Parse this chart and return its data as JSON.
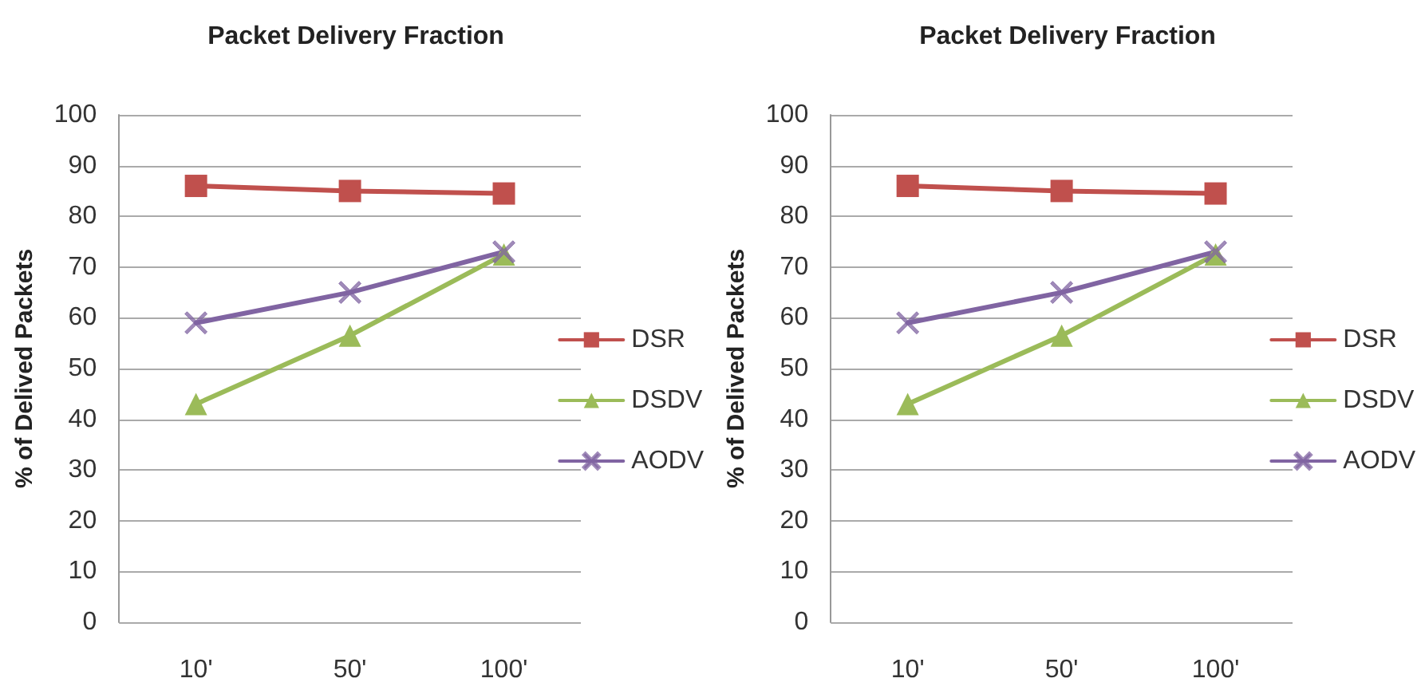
{
  "chart_data": [
    {
      "type": "line",
      "title": "Packet Delivery Fraction",
      "ylabel": "% of Delived Packets",
      "categories": [
        "10'",
        "50'",
        "100'"
      ],
      "series": [
        {
          "name": "DSR",
          "color": "#c0504d",
          "marker": "square",
          "values": [
            86,
            85,
            84.5
          ]
        },
        {
          "name": "DSDV",
          "color": "#9bbb59",
          "marker": "triangle",
          "values": [
            43,
            56.5,
            72.5
          ]
        },
        {
          "name": "AODV",
          "color": "#8064a2",
          "marker": "cross",
          "values": [
            59,
            65,
            73
          ]
        }
      ],
      "ylim": [
        0,
        100
      ],
      "yticks": [
        0,
        10,
        20,
        30,
        40,
        50,
        60,
        70,
        80,
        90,
        100
      ],
      "grid": "y",
      "legend": "right"
    },
    {
      "type": "line",
      "title": "Packet Delivery Fraction",
      "ylabel": "% of Delived Packets",
      "categories": [
        "10'",
        "50'",
        "100'"
      ],
      "series": [
        {
          "name": "DSR",
          "color": "#c0504d",
          "marker": "square",
          "values": [
            86,
            85,
            84.5
          ]
        },
        {
          "name": "DSDV",
          "color": "#9bbb59",
          "marker": "triangle",
          "values": [
            43,
            56.5,
            72.5
          ]
        },
        {
          "name": "AODV",
          "color": "#8064a2",
          "marker": "cross",
          "values": [
            59,
            65,
            73
          ]
        }
      ],
      "ylim": [
        0,
        100
      ],
      "yticks": [
        0,
        10,
        20,
        30,
        40,
        50,
        60,
        70,
        80,
        90,
        100
      ],
      "grid": "y",
      "legend": "right"
    }
  ]
}
